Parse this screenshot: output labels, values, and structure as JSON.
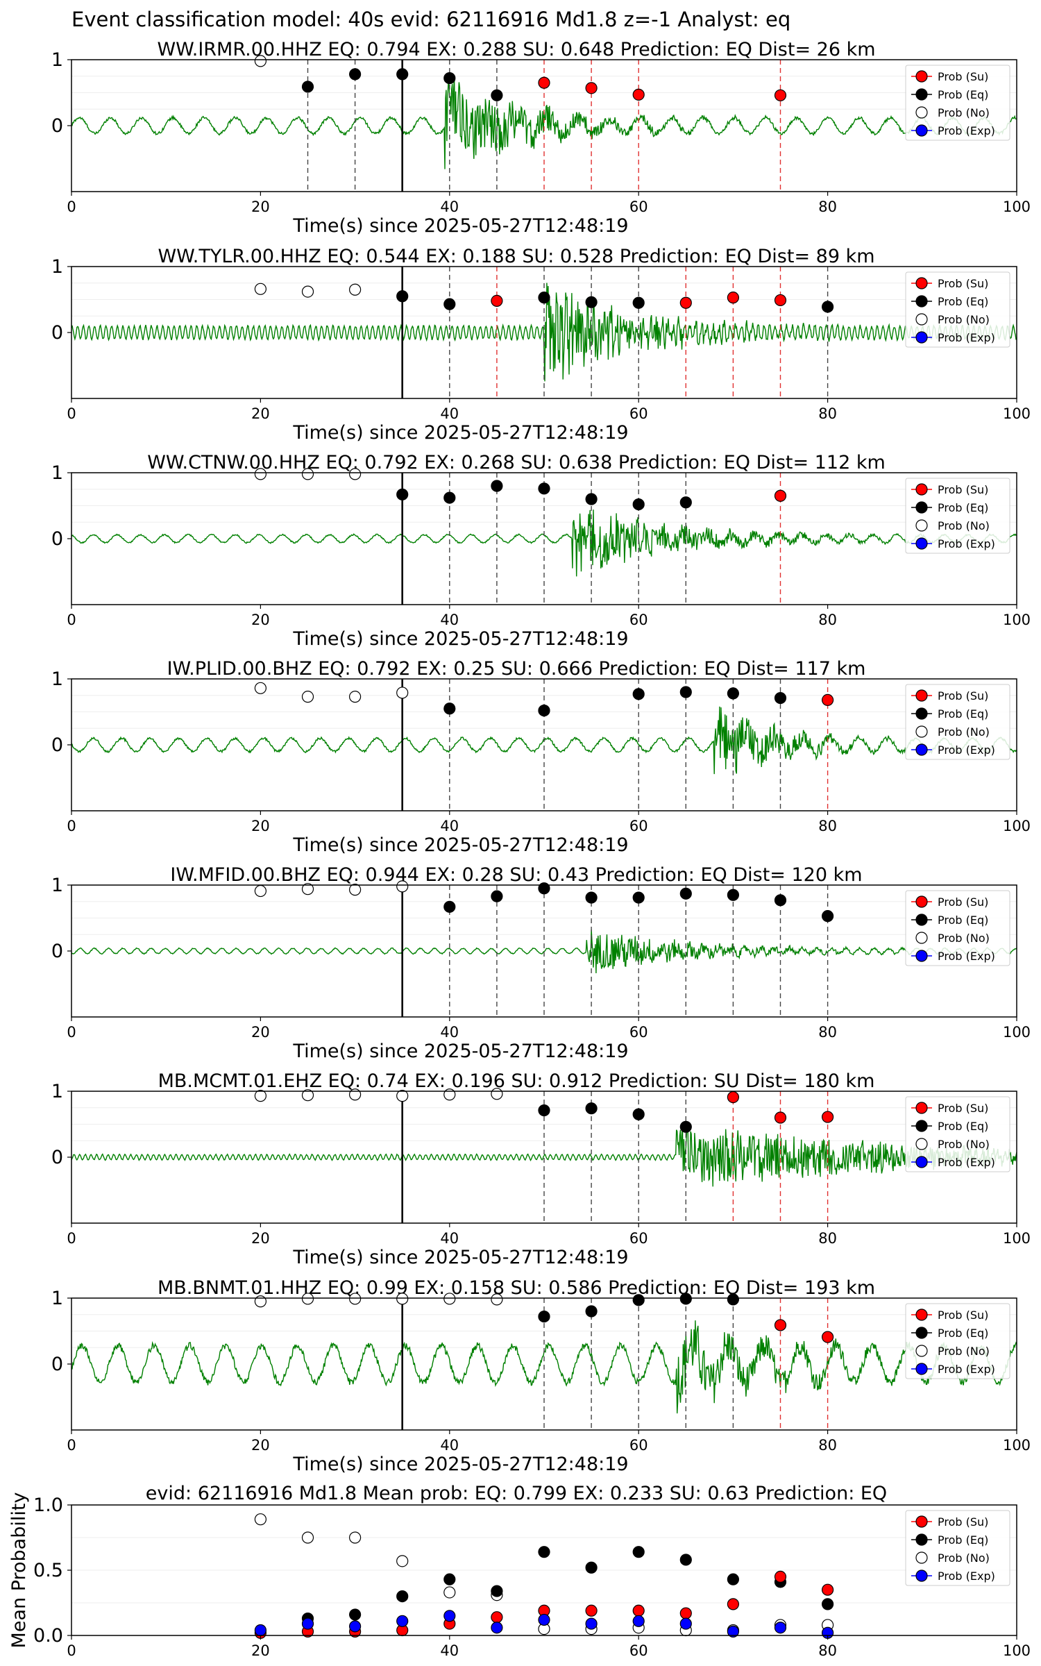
{
  "figure_title": "Event classification model: 40s evid: 62116916 Md1.8 z=-1 Analyst: eq",
  "legend": {
    "su": "Prob (Su)",
    "eq": "Prob (Eq)",
    "no": "Prob (No)",
    "exp": "Prob (Exp)"
  },
  "colors": {
    "waveform": "#008000",
    "su": "#ff0000",
    "eq": "#000000",
    "no": "#ffffff",
    "exp": "#0000ff",
    "axis": "#000000"
  },
  "chart_data": [
    {
      "type": "line",
      "title": "WW.IRMR.00.HHZ   EQ: 0.794  EX: 0.288  SU: 0.648   Prediction: EQ    Dist= 26 km",
      "xlabel": "Time(s) since 2025-05-27T12:48:19",
      "xlim": [
        0,
        100
      ],
      "ylim": [
        -1,
        1
      ],
      "xticks": [
        "0",
        "20",
        "40",
        "60",
        "80",
        "100"
      ],
      "yticks": [
        "1",
        "0"
      ],
      "waveform": {
        "amplitude": 0.12,
        "period": 3.3,
        "signal_onset": 39.5,
        "signal_amplitude": 0.75,
        "decay": 8
      },
      "p_arrival": 35,
      "no": [
        {
          "x": 20,
          "y": 0.98
        }
      ],
      "eq": [
        {
          "x": 25,
          "y": 0.59
        },
        {
          "x": 30,
          "y": 0.78
        },
        {
          "x": 35,
          "y": 0.78
        },
        {
          "x": 40,
          "y": 0.72
        },
        {
          "x": 45,
          "y": 0.46
        }
      ],
      "su": [
        {
          "x": 50,
          "y": 0.65
        },
        {
          "x": 55,
          "y": 0.57
        },
        {
          "x": 60,
          "y": 0.47
        },
        {
          "x": 75,
          "y": 0.46
        }
      ]
    },
    {
      "type": "line",
      "title": "WW.TYLR.00.HHZ   EQ: 0.544  EX: 0.188  SU: 0.528   Prediction: EQ    Dist= 89 km",
      "xlabel": "Time(s) since 2025-05-27T12:48:19",
      "xlim": [
        0,
        100
      ],
      "ylim": [
        -1,
        1
      ],
      "xticks": [
        "0",
        "20",
        "40",
        "60",
        "80",
        "100"
      ],
      "yticks": [
        "1",
        "0"
      ],
      "waveform": {
        "amplitude": 0.1,
        "period": 0.6,
        "signal_onset": 50,
        "signal_amplitude": 0.8,
        "decay": 9
      },
      "p_arrival": 35,
      "no": [
        {
          "x": 20,
          "y": 0.66
        },
        {
          "x": 25,
          "y": 0.62
        },
        {
          "x": 30,
          "y": 0.65
        }
      ],
      "eq": [
        {
          "x": 35,
          "y": 0.55
        },
        {
          "x": 40,
          "y": 0.43
        },
        {
          "x": 50,
          "y": 0.53
        },
        {
          "x": 55,
          "y": 0.46
        },
        {
          "x": 60,
          "y": 0.45
        },
        {
          "x": 80,
          "y": 0.39
        }
      ],
      "su": [
        {
          "x": 45,
          "y": 0.48
        },
        {
          "x": 65,
          "y": 0.45
        },
        {
          "x": 70,
          "y": 0.53
        },
        {
          "x": 75,
          "y": 0.49
        }
      ]
    },
    {
      "type": "line",
      "title": "WW.CTNW.00.HHZ   EQ: 0.792  EX: 0.268  SU: 0.638   Prediction: EQ    Dist= 112 km",
      "xlabel": "Time(s) since 2025-05-27T12:48:19",
      "xlim": [
        0,
        100
      ],
      "ylim": [
        -1,
        1
      ],
      "xticks": [
        "0",
        "20",
        "40",
        "60",
        "80",
        "100"
      ],
      "yticks": [
        "1",
        "0"
      ],
      "waveform": {
        "amplitude": 0.06,
        "period": 2.5,
        "signal_onset": 53,
        "signal_amplitude": 0.55,
        "decay": 10
      },
      "p_arrival": 35,
      "no": [
        {
          "x": 20,
          "y": 0.98
        },
        {
          "x": 25,
          "y": 0.98
        },
        {
          "x": 30,
          "y": 0.98
        }
      ],
      "eq": [
        {
          "x": 35,
          "y": 0.67
        },
        {
          "x": 40,
          "y": 0.62
        },
        {
          "x": 45,
          "y": 0.8
        },
        {
          "x": 50,
          "y": 0.76
        },
        {
          "x": 55,
          "y": 0.6
        },
        {
          "x": 60,
          "y": 0.52
        },
        {
          "x": 65,
          "y": 0.55
        }
      ],
      "su": [
        {
          "x": 75,
          "y": 0.65
        }
      ]
    },
    {
      "type": "line",
      "title": "IW.PLID.00.BHZ   EQ: 0.792  EX: 0.25  SU: 0.666   Prediction: EQ    Dist= 117 km",
      "xlabel": "Time(s) since 2025-05-27T12:48:19",
      "xlim": [
        0,
        100
      ],
      "ylim": [
        -1,
        1
      ],
      "xticks": [
        "0",
        "20",
        "40",
        "60",
        "80",
        "100"
      ],
      "yticks": [
        "1",
        "0"
      ],
      "waveform": {
        "amplitude": 0.1,
        "period": 3,
        "signal_onset": 68,
        "signal_amplitude": 0.6,
        "decay": 6
      },
      "p_arrival": 35,
      "no": [
        {
          "x": 20,
          "y": 0.86
        },
        {
          "x": 25,
          "y": 0.73
        },
        {
          "x": 30,
          "y": 0.73
        },
        {
          "x": 35,
          "y": 0.79
        }
      ],
      "eq": [
        {
          "x": 40,
          "y": 0.55
        },
        {
          "x": 50,
          "y": 0.52
        },
        {
          "x": 60,
          "y": 0.77
        },
        {
          "x": 65,
          "y": 0.8
        },
        {
          "x": 70,
          "y": 0.78
        },
        {
          "x": 75,
          "y": 0.71
        }
      ],
      "su": [
        {
          "x": 80,
          "y": 0.68
        }
      ]
    },
    {
      "type": "line",
      "title": "IW.MFID.00.BHZ   EQ: 0.944  EX: 0.28  SU: 0.43   Prediction: EQ    Dist= 120 km",
      "xlabel": "Time(s) since 2025-05-27T12:48:19",
      "xlim": [
        0,
        100
      ],
      "ylim": [
        -1,
        1
      ],
      "xticks": [
        "0",
        "20",
        "40",
        "60",
        "80",
        "100"
      ],
      "yticks": [
        "1",
        "0"
      ],
      "waveform": {
        "amplitude": 0.04,
        "period": 1.5,
        "signal_onset": 54.5,
        "signal_amplitude": 0.35,
        "decay": 10
      },
      "p_arrival": 35,
      "no": [
        {
          "x": 20,
          "y": 0.91
        },
        {
          "x": 25,
          "y": 0.94
        },
        {
          "x": 30,
          "y": 0.93
        },
        {
          "x": 35,
          "y": 0.98
        }
      ],
      "eq": [
        {
          "x": 40,
          "y": 0.67
        },
        {
          "x": 45,
          "y": 0.83
        },
        {
          "x": 50,
          "y": 0.95
        },
        {
          "x": 55,
          "y": 0.81
        },
        {
          "x": 60,
          "y": 0.81
        },
        {
          "x": 65,
          "y": 0.87
        },
        {
          "x": 70,
          "y": 0.85
        },
        {
          "x": 75,
          "y": 0.77
        },
        {
          "x": 80,
          "y": 0.53
        }
      ],
      "su": []
    },
    {
      "type": "line",
      "title": "MB.MCMT.01.EHZ   EQ: 0.74  EX: 0.196  SU: 0.912   Prediction: SU    Dist= 180 km",
      "xlabel": "Time(s) since 2025-05-27T12:48:19",
      "xlim": [
        0,
        100
      ],
      "ylim": [
        -1,
        1
      ],
      "xticks": [
        "0",
        "20",
        "40",
        "60",
        "80",
        "100"
      ],
      "yticks": [
        "1",
        "0"
      ],
      "waveform": {
        "amplitude": 0.04,
        "period": 0.6,
        "signal_onset": 64,
        "signal_amplitude": 0.5,
        "decay": 25
      },
      "p_arrival": 35,
      "no": [
        {
          "x": 20,
          "y": 0.93
        },
        {
          "x": 25,
          "y": 0.94
        },
        {
          "x": 30,
          "y": 0.95
        },
        {
          "x": 35,
          "y": 0.93
        },
        {
          "x": 40,
          "y": 0.95
        },
        {
          "x": 45,
          "y": 0.96
        }
      ],
      "eq": [
        {
          "x": 50,
          "y": 0.71
        },
        {
          "x": 55,
          "y": 0.74
        },
        {
          "x": 60,
          "y": 0.65
        },
        {
          "x": 65,
          "y": 0.46
        }
      ],
      "su": [
        {
          "x": 70,
          "y": 0.91
        },
        {
          "x": 75,
          "y": 0.6
        },
        {
          "x": 80,
          "y": 0.61
        }
      ]
    },
    {
      "type": "line",
      "title": "MB.BNMT.01.HHZ   EQ: 0.99  EX: 0.158  SU: 0.586   Prediction: EQ    Dist= 193 km",
      "xlabel": "Time(s) since 2025-05-27T12:48:19",
      "xlim": [
        0,
        100
      ],
      "ylim": [
        -1,
        1
      ],
      "xticks": [
        "0",
        "20",
        "40",
        "60",
        "80",
        "100"
      ],
      "yticks": [
        "1",
        "0"
      ],
      "waveform": {
        "amplitude": 0.28,
        "period": 3.8,
        "signal_onset": 64,
        "signal_amplitude": 0.5,
        "decay": 10
      },
      "p_arrival": 35,
      "no": [
        {
          "x": 20,
          "y": 0.95
        },
        {
          "x": 25,
          "y": 0.99
        },
        {
          "x": 30,
          "y": 0.99
        },
        {
          "x": 35,
          "y": 0.99
        },
        {
          "x": 40,
          "y": 0.99
        },
        {
          "x": 45,
          "y": 0.98
        }
      ],
      "eq": [
        {
          "x": 50,
          "y": 0.72
        },
        {
          "x": 55,
          "y": 0.8
        },
        {
          "x": 60,
          "y": 0.97
        },
        {
          "x": 65,
          "y": 0.99
        },
        {
          "x": 70,
          "y": 0.98
        }
      ],
      "su": [
        {
          "x": 75,
          "y": 0.59
        },
        {
          "x": 80,
          "y": 0.41
        }
      ]
    },
    {
      "type": "scatter",
      "title": "evid: 62116916  Md1.8   Mean prob:   EQ: 0.799  EX: 0.233  SU: 0.63   Prediction: EQ",
      "ylabel": "Mean Probability",
      "xlim": [
        0,
        100
      ],
      "ylim": [
        0,
        1
      ],
      "xticks": [
        "0",
        "20",
        "40",
        "60",
        "80",
        "100"
      ],
      "yticks": [
        "1.0",
        "0.5",
        "0.0"
      ],
      "no": [
        {
          "x": 20,
          "y": 0.89
        },
        {
          "x": 25,
          "y": 0.75
        },
        {
          "x": 30,
          "y": 0.75
        },
        {
          "x": 35,
          "y": 0.57
        },
        {
          "x": 40,
          "y": 0.33
        },
        {
          "x": 45,
          "y": 0.31
        },
        {
          "x": 50,
          "y": 0.05
        },
        {
          "x": 55,
          "y": 0.05
        },
        {
          "x": 60,
          "y": 0.06
        },
        {
          "x": 65,
          "y": 0.04
        },
        {
          "x": 70,
          "y": 0.04
        },
        {
          "x": 75,
          "y": 0.08
        },
        {
          "x": 80,
          "y": 0.08
        }
      ],
      "eq": [
        {
          "x": 25,
          "y": 0.13
        },
        {
          "x": 30,
          "y": 0.16
        },
        {
          "x": 35,
          "y": 0.3
        },
        {
          "x": 40,
          "y": 0.43
        },
        {
          "x": 45,
          "y": 0.34
        },
        {
          "x": 50,
          "y": 0.64
        },
        {
          "x": 55,
          "y": 0.52
        },
        {
          "x": 60,
          "y": 0.64
        },
        {
          "x": 65,
          "y": 0.58
        },
        {
          "x": 70,
          "y": 0.43
        },
        {
          "x": 75,
          "y": 0.41
        },
        {
          "x": 80,
          "y": 0.24
        }
      ],
      "su": [
        {
          "x": 20,
          "y": 0.02
        },
        {
          "x": 25,
          "y": 0.03
        },
        {
          "x": 30,
          "y": 0.03
        },
        {
          "x": 35,
          "y": 0.04
        },
        {
          "x": 40,
          "y": 0.09
        },
        {
          "x": 45,
          "y": 0.14
        },
        {
          "x": 50,
          "y": 0.19
        },
        {
          "x": 55,
          "y": 0.19
        },
        {
          "x": 60,
          "y": 0.19
        },
        {
          "x": 65,
          "y": 0.17
        },
        {
          "x": 70,
          "y": 0.24
        },
        {
          "x": 75,
          "y": 0.45
        },
        {
          "x": 80,
          "y": 0.35
        }
      ],
      "exp": [
        {
          "x": 20,
          "y": 0.04
        },
        {
          "x": 25,
          "y": 0.09
        },
        {
          "x": 30,
          "y": 0.07
        },
        {
          "x": 35,
          "y": 0.11
        },
        {
          "x": 40,
          "y": 0.15
        },
        {
          "x": 45,
          "y": 0.06
        },
        {
          "x": 50,
          "y": 0.12
        },
        {
          "x": 55,
          "y": 0.09
        },
        {
          "x": 60,
          "y": 0.11
        },
        {
          "x": 65,
          "y": 0.09
        },
        {
          "x": 70,
          "y": 0.03
        },
        {
          "x": 75,
          "y": 0.06
        },
        {
          "x": 80,
          "y": 0.02
        }
      ]
    }
  ]
}
